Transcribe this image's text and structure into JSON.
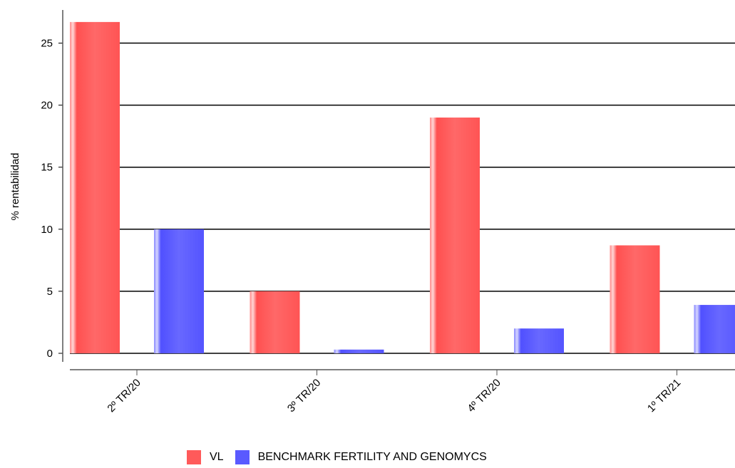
{
  "chart_data": {
    "type": "bar",
    "title": "",
    "xlabel": "",
    "ylabel": "% rentabilidad",
    "categories": [
      "2º TR/20",
      "3º TR/20",
      "4º TR/20",
      "1º TR/21"
    ],
    "series": [
      {
        "name": "VL",
        "color": "#ff5a5a",
        "values": [
          26.7,
          5.0,
          19.0,
          8.7
        ]
      },
      {
        "name": "BENCHMARK FERTILITY AND GENOMYCS",
        "color": "#5a5aff",
        "values": [
          10.0,
          0.3,
          2.0,
          3.9
        ]
      }
    ],
    "ylim": [
      0,
      28
    ],
    "yticks": [
      0,
      5,
      10,
      15,
      20,
      25
    ],
    "grid": true,
    "legend_position": "bottom"
  }
}
